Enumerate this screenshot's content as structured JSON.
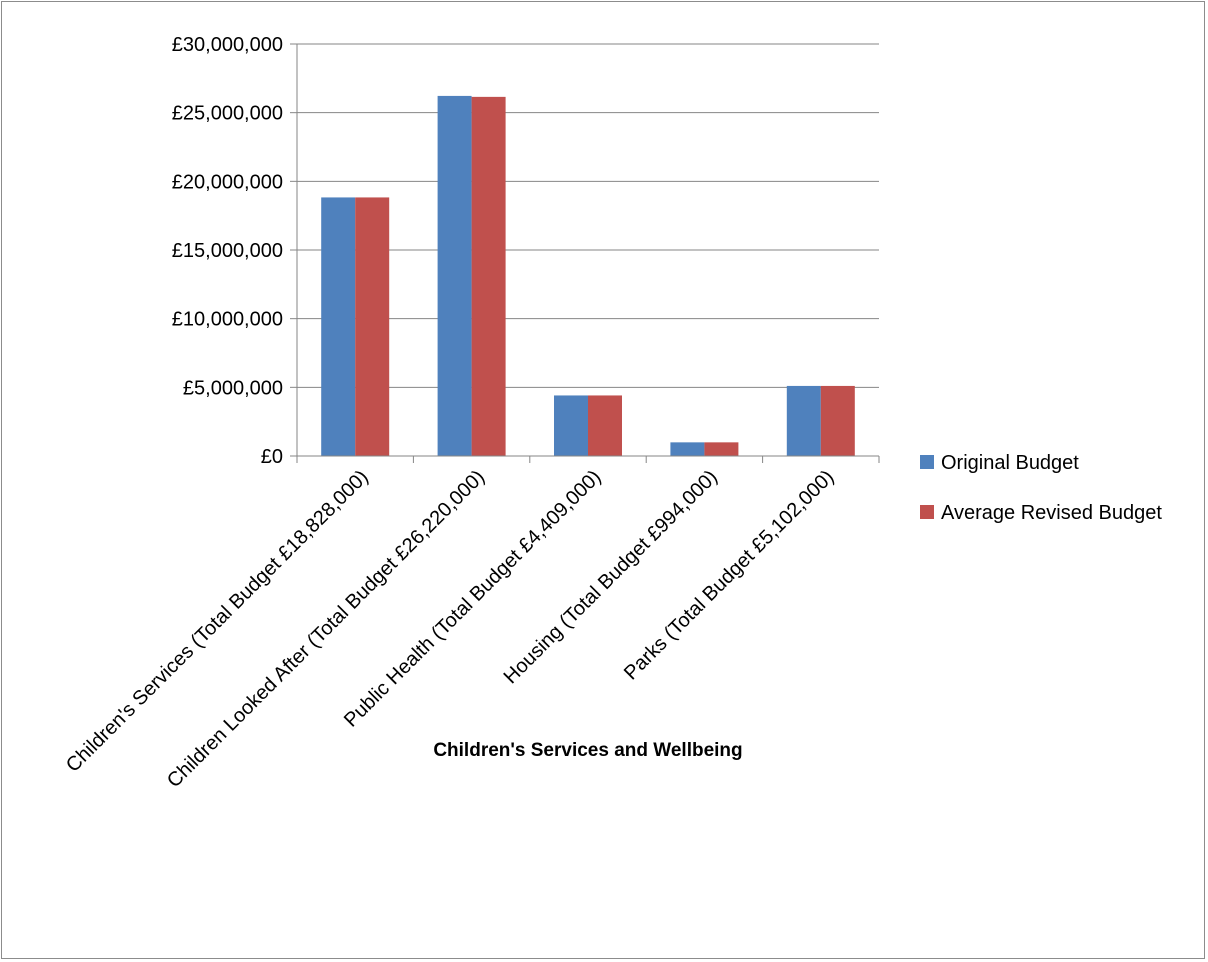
{
  "chart_data": {
    "type": "bar",
    "title": "",
    "xlabel": "Children's Services and Wellbeing",
    "ylabel": "",
    "categories": [
      "Children's Services (Total Budget £18,828,000)",
      "Children Looked After (Total Budget £26,220,000)",
      "Public Health (Total Budget £4,409,000)",
      "Housing (Total Budget £994,000)",
      "Parks (Total Budget £5,102,000)"
    ],
    "series": [
      {
        "name": "Original Budget",
        "color": "#4F81BD",
        "values": [
          18828000,
          26220000,
          4409000,
          994000,
          5102000
        ]
      },
      {
        "name": "Average Revised Budget",
        "color": "#C0504D",
        "values": [
          18828000,
          26150000,
          4409000,
          994000,
          5102000
        ]
      }
    ],
    "ylim": [
      0,
      30000000
    ],
    "yticks": [
      0,
      5000000,
      10000000,
      15000000,
      20000000,
      25000000,
      30000000
    ],
    "ytick_labels": [
      "£0",
      "£5,000,000",
      "£10,000,000",
      "£15,000,000",
      "£20,000,000",
      "£25,000,000",
      "£30,000,000"
    ],
    "grid": true,
    "legend_position": "right"
  }
}
